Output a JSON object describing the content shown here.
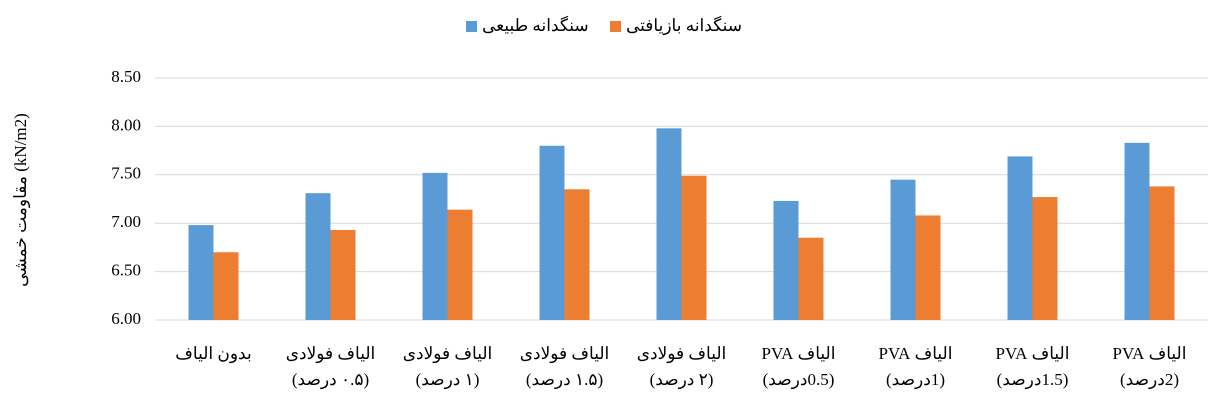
{
  "chart_data": {
    "type": "bar",
    "y_label": "مقاومت خمشی (kN/m2)",
    "categories": [
      [
        "بدون الیاف"
      ],
      [
        "الیاف فولادی",
        "(۰.۵ درصد)"
      ],
      [
        "الیاف فولادی",
        "(۱ درصد)"
      ],
      [
        "الیاف فولادی",
        "(۱.۵ درصد)"
      ],
      [
        "الیاف فولادی",
        "(۲ درصد)"
      ],
      [
        "الیاف PVA",
        "(0.5درصد)"
      ],
      [
        "الیاف PVA",
        "(1درصد)"
      ],
      [
        "الیاف PVA",
        "(1.5درصد)"
      ],
      [
        "الیاف PVA",
        "(2درصد)"
      ]
    ],
    "series": [
      {
        "name": "سنگدانه طبیعی",
        "color": "#5b9bd5",
        "values": [
          6.98,
          7.31,
          7.52,
          7.8,
          7.98,
          7.23,
          7.45,
          7.69,
          7.83
        ]
      },
      {
        "name": "سنگدانه بازیافتی",
        "color": "#ed7d31",
        "values": [
          6.7,
          6.93,
          7.14,
          7.35,
          7.49,
          6.85,
          7.08,
          7.27,
          7.38
        ]
      }
    ],
    "ylim": [
      6,
      8.5
    ],
    "yticks": [
      {
        "value": 6,
        "label": "6.00"
      },
      {
        "value": 6.5,
        "label": "6.50"
      },
      {
        "value": 7,
        "label": "7.00"
      },
      {
        "value": 7.5,
        "label": "7.50"
      },
      {
        "value": 8,
        "label": "8.00"
      },
      {
        "value": 8.5,
        "label": "8.50"
      }
    ],
    "grid": true,
    "legend": "top"
  }
}
